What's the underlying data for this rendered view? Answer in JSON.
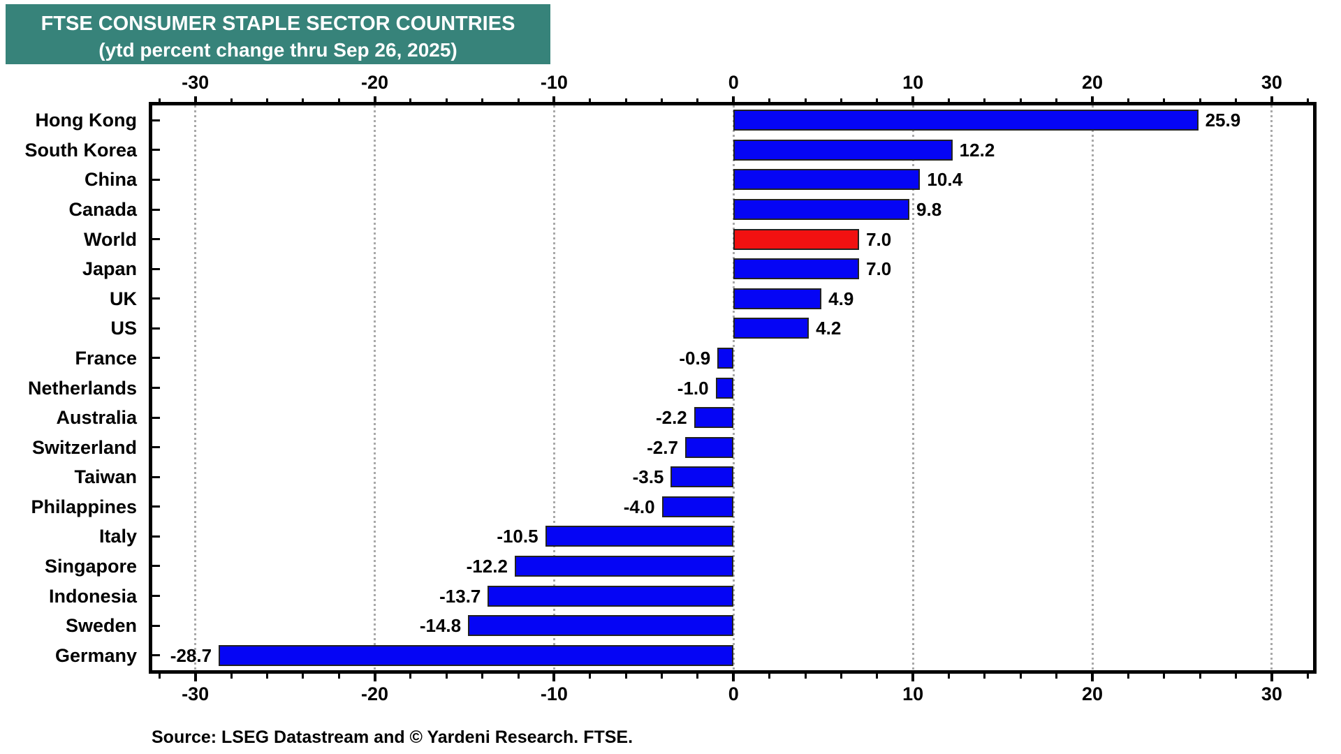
{
  "chart_data": {
    "type": "bar",
    "orientation": "horizontal",
    "title": "FTSE CONSUMER STAPLE SECTOR COUNTRIES",
    "subtitle": "(ytd percent change thru Sep 26, 2025)",
    "source": "Source: LSEG Datastream and © Yardeni Research. FTSE.",
    "categories": [
      "Hong Kong",
      "South Korea",
      "China",
      "Canada",
      "World",
      "Japan",
      "UK",
      "US",
      "France",
      "Netherlands",
      "Australia",
      "Switzerland",
      "Taiwan",
      "Philappines",
      "Italy",
      "Singapore",
      "Indonesia",
      "Sweden",
      "Germany"
    ],
    "values": [
      25.9,
      12.2,
      10.4,
      9.8,
      7.0,
      7.0,
      4.9,
      4.2,
      -0.9,
      -1.0,
      -2.2,
      -2.7,
      -3.5,
      -4.0,
      -10.5,
      -12.2,
      -13.7,
      -14.8,
      -28.7
    ],
    "highlight_index": 4,
    "xlim": [
      -32.4,
      32.3
    ],
    "x_major_ticks": [
      -30,
      -20,
      -10,
      0,
      10,
      20,
      30
    ],
    "x_minor_tick_step": 2,
    "xlabel": "",
    "ylabel": "",
    "legend": null,
    "grid": "vertical dotted gray lines at major ticks",
    "colors": {
      "bar": "#0505F5",
      "highlight": "#F21111",
      "bar_outline": "#222222",
      "grid": "#a8a8a8",
      "axis": "#000000",
      "title_bg": "#37837A",
      "title_text": "#FFFFFF",
      "text": "#000000"
    }
  }
}
